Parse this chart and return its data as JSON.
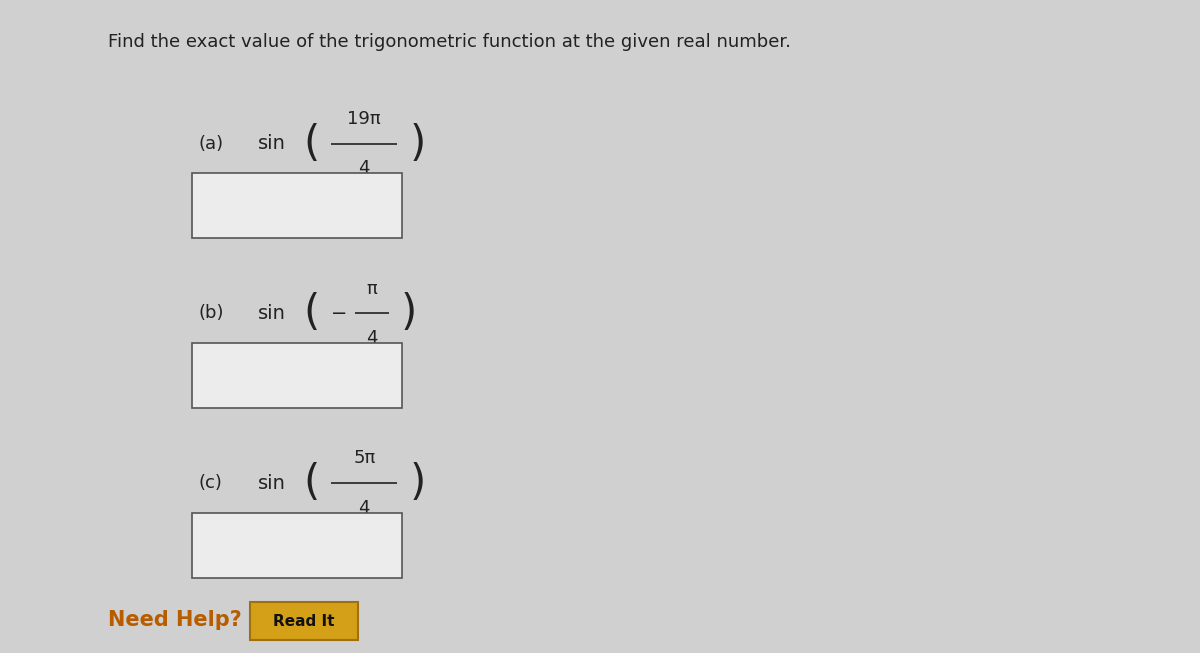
{
  "title": "Find the exact value of the trigonometric function at the given real number.",
  "title_fontsize": 13,
  "title_color": "#222222",
  "background_color": "#d0d0d0",
  "panel_color": "#e0e0e0",
  "parts": [
    {
      "label": "(a)",
      "expr_numerator": "19π",
      "expr_denominator": "4",
      "sign": ""
    },
    {
      "label": "(b)",
      "expr_numerator": "π",
      "expr_denominator": "4",
      "sign": "−"
    },
    {
      "label": "(c)",
      "expr_numerator": "5π",
      "expr_denominator": "4",
      "sign": ""
    }
  ],
  "box_facecolor": "#ececec",
  "box_edgecolor": "#555555",
  "need_help_color": "#b85c00",
  "read_it_bg": "#d4a017",
  "read_it_edge": "#a07010",
  "need_help_fontsize": 15,
  "read_it_fontsize": 11
}
